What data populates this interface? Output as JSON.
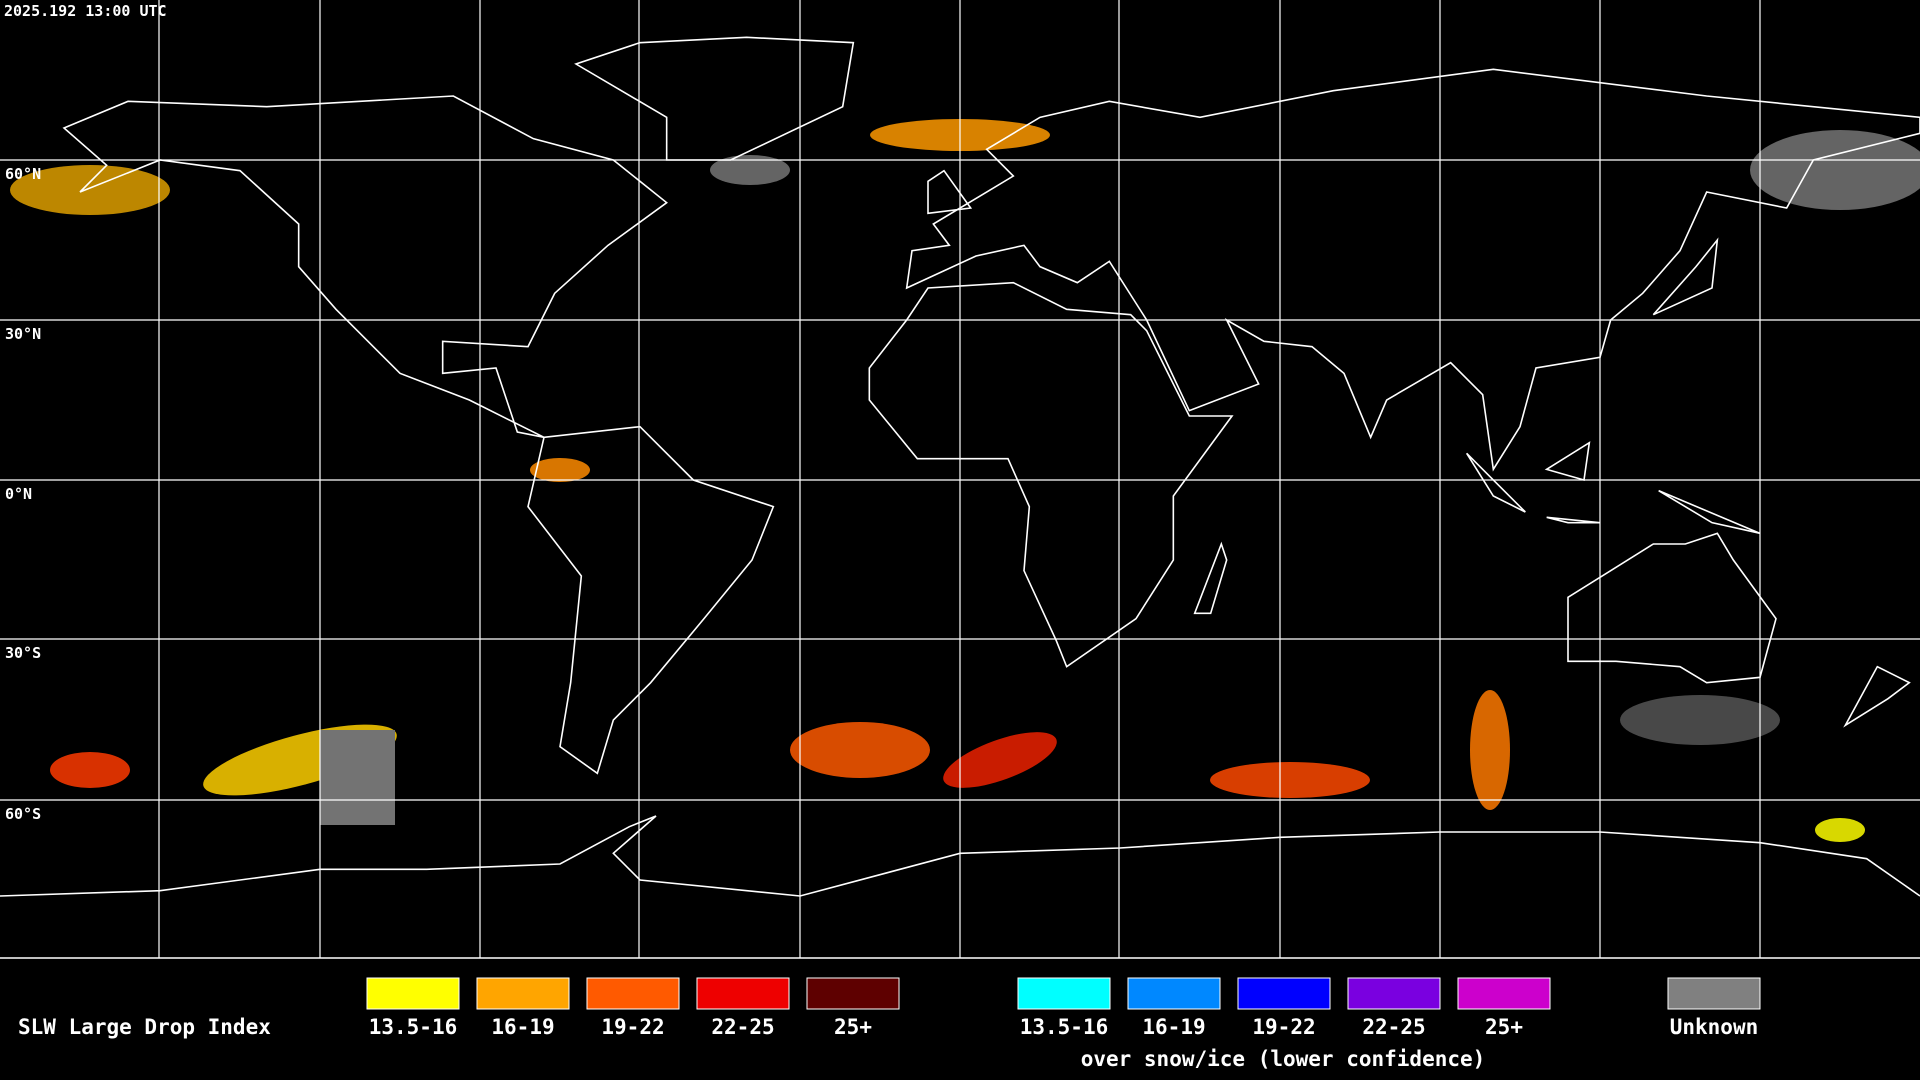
{
  "header": {
    "timestamp": "2025.192 13:00 UTC"
  },
  "map": {
    "latitude_labels": [
      "60°N",
      "30°N",
      "0°N",
      "30°S",
      "60°S"
    ]
  },
  "legend": {
    "title": "SLW Large Drop Index",
    "items": [
      {
        "label": "13.5-16",
        "color": "#ffff00"
      },
      {
        "label": "16-19",
        "color": "#ffa500"
      },
      {
        "label": "19-22",
        "color": "#ff5a00"
      },
      {
        "label": "22-25",
        "color": "#ee0000"
      },
      {
        "label": "25+",
        "color": "#5e0000"
      }
    ],
    "snow_items": [
      {
        "label": "13.5-16",
        "color": "#00ffff"
      },
      {
        "label": "16-19",
        "color": "#0088ff"
      },
      {
        "label": "19-22",
        "color": "#0000ff"
      },
      {
        "label": "22-25",
        "color": "#7a00e0"
      },
      {
        "label": "25+",
        "color": "#cc00cc"
      }
    ],
    "snow_caption": "over snow/ice (lower confidence)",
    "unknown": {
      "label": "Unknown",
      "color": "#808080"
    }
  }
}
